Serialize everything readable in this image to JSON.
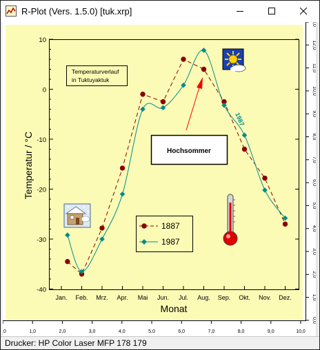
{
  "window": {
    "title": "R-Plot (Vers. 1.5.0) [tuk.xrp]",
    "minimize_icon": "minimize-icon",
    "maximize_icon": "maximize-icon",
    "close_icon": "close-icon"
  },
  "status": {
    "printer": "Drucker: HP Color Laser MFP 178 179"
  },
  "ruler": {
    "x_ticks": [
      "0,0",
      "1,0",
      "2,0",
      "3,0",
      "4,0",
      "5,0",
      "6,0",
      "7,0",
      "8,0",
      "9,0",
      "10,0"
    ],
    "y_ticks": [
      "13,0",
      "12,0",
      "11,0",
      "10,0",
      "9,0",
      "8,0",
      "7,0",
      "6,0",
      "5,0",
      "4,0",
      "3,0",
      "2,0",
      "1,0",
      "0,0"
    ]
  },
  "colors": {
    "paper": "#fbfbb6",
    "series_1887": "#8b0000",
    "series_1987": "#008b8b",
    "arrow": "#ff0000"
  },
  "annotations": {
    "title_line1": "Temperaturverlauf",
    "title_line2": "in Tuktuyaktuk",
    "highlight": "Hochsommer",
    "curve_label": "1987",
    "sun_icon": "sun-cloud-icon",
    "winter_icon": "winter-house-icon",
    "thermometer_icon": "thermometer-icon"
  },
  "chart_data": {
    "type": "line",
    "title": "",
    "xlabel": "Monat",
    "ylabel": "Temperatur / °C",
    "categories": [
      "Jan.",
      "Feb.",
      "Mrz.",
      "Apr.",
      "Mai",
      "Jun.",
      "Jul.",
      "Aug.",
      "Sep.",
      "Okt.",
      "Nov.",
      "Dez."
    ],
    "y_ticks": [
      10,
      0,
      -10,
      -20,
      -30,
      -40
    ],
    "ylim": [
      -40,
      10
    ],
    "grid": false,
    "legend": "center-left",
    "series": [
      {
        "name": "1887",
        "style": "dashed line with circle markers",
        "points": [
          {
            "x": 0.3,
            "y": -34.5
          },
          {
            "x": 1.0,
            "y": -37
          },
          {
            "x": 2.0,
            "y": -27.8
          },
          {
            "x": 3.0,
            "y": -15.8
          },
          {
            "x": 4.0,
            "y": -1
          },
          {
            "x": 5.0,
            "y": -2.5
          },
          {
            "x": 6.0,
            "y": 6
          },
          {
            "x": 7.0,
            "y": 4
          },
          {
            "x": 8.0,
            "y": -2.5
          },
          {
            "x": 9.0,
            "y": -12
          },
          {
            "x": 10.0,
            "y": -17.8
          },
          {
            "x": 11.0,
            "y": -27
          }
        ]
      },
      {
        "name": "1987",
        "style": "smooth line with diamond markers",
        "points": [
          {
            "x": 0.3,
            "y": -29.2
          },
          {
            "x": 1.0,
            "y": -36.5
          },
          {
            "x": 2.0,
            "y": -30
          },
          {
            "x": 3.0,
            "y": -21
          },
          {
            "x": 4.0,
            "y": -4
          },
          {
            "x": 5.0,
            "y": -3.7
          },
          {
            "x": 6.0,
            "y": 0.8
          },
          {
            "x": 7.0,
            "y": 7.8
          },
          {
            "x": 8.0,
            "y": -3.2
          },
          {
            "x": 9.0,
            "y": -9.2
          },
          {
            "x": 10.0,
            "y": -20.2
          },
          {
            "x": 11.0,
            "y": -25.8
          }
        ]
      }
    ]
  }
}
